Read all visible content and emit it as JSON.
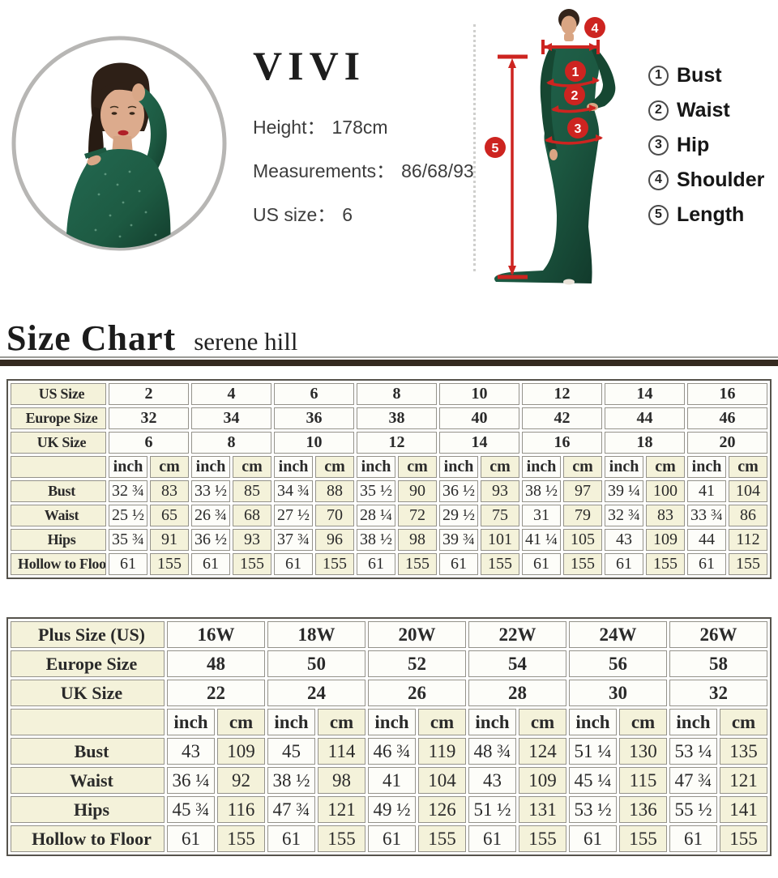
{
  "model_info": {
    "brand": "VIVI",
    "height_label": "Height：",
    "height_value": "178cm",
    "measurements_label": "Measurements：",
    "measurements_value": "86/68/93",
    "us_size_label": "US size：",
    "us_size_value": "6"
  },
  "diagram": {
    "markers": [
      "1",
      "2",
      "3",
      "4",
      "5"
    ],
    "legend": [
      {
        "num": "1",
        "label": "Bust"
      },
      {
        "num": "2",
        "label": "Waist"
      },
      {
        "num": "3",
        "label": "Hip"
      },
      {
        "num": "4",
        "label": "Shoulder"
      },
      {
        "num": "5",
        "label": "Length"
      }
    ]
  },
  "heading": {
    "title": "Size Chart",
    "subtitle": "serene hill"
  },
  "units": {
    "inch": "inch",
    "cm": "cm"
  },
  "size_chart": {
    "header_rows": [
      {
        "label": "US Size",
        "values": [
          "2",
          "4",
          "6",
          "8",
          "10",
          "12",
          "14",
          "16"
        ]
      },
      {
        "label": "Europe Size",
        "values": [
          "32",
          "34",
          "36",
          "38",
          "40",
          "42",
          "44",
          "46"
        ]
      },
      {
        "label": "UK Size",
        "values": [
          "6",
          "8",
          "10",
          "12",
          "14",
          "16",
          "18",
          "20"
        ]
      }
    ],
    "data_rows": [
      {
        "label": "Bust",
        "values": [
          [
            "32 ¾",
            "83"
          ],
          [
            "33 ½",
            "85"
          ],
          [
            "34 ¾",
            "88"
          ],
          [
            "35 ½",
            "90"
          ],
          [
            "36 ½",
            "93"
          ],
          [
            "38 ½",
            "97"
          ],
          [
            "39 ¼",
            "100"
          ],
          [
            "41",
            "104"
          ]
        ]
      },
      {
        "label": "Waist",
        "values": [
          [
            "25 ½",
            "65"
          ],
          [
            "26 ¾",
            "68"
          ],
          [
            "27 ½",
            "70"
          ],
          [
            "28 ¼",
            "72"
          ],
          [
            "29 ½",
            "75"
          ],
          [
            "31",
            "79"
          ],
          [
            "32 ¾",
            "83"
          ],
          [
            "33 ¾",
            "86"
          ]
        ]
      },
      {
        "label": "Hips",
        "values": [
          [
            "35 ¾",
            "91"
          ],
          [
            "36 ½",
            "93"
          ],
          [
            "37 ¾",
            "96"
          ],
          [
            "38 ½",
            "98"
          ],
          [
            "39 ¾",
            "101"
          ],
          [
            "41 ¼",
            "105"
          ],
          [
            "43",
            "109"
          ],
          [
            "44",
            "112"
          ]
        ]
      },
      {
        "label": "Hollow to Floor",
        "values": [
          [
            "61",
            "155"
          ],
          [
            "61",
            "155"
          ],
          [
            "61",
            "155"
          ],
          [
            "61",
            "155"
          ],
          [
            "61",
            "155"
          ],
          [
            "61",
            "155"
          ],
          [
            "61",
            "155"
          ],
          [
            "61",
            "155"
          ]
        ]
      }
    ]
  },
  "plus_size_chart": {
    "header_rows": [
      {
        "label": "Plus Size (US)",
        "values": [
          "16W",
          "18W",
          "20W",
          "22W",
          "24W",
          "26W"
        ]
      },
      {
        "label": "Europe Size",
        "values": [
          "48",
          "50",
          "52",
          "54",
          "56",
          "58"
        ]
      },
      {
        "label": "UK Size",
        "values": [
          "22",
          "24",
          "26",
          "28",
          "30",
          "32"
        ]
      }
    ],
    "data_rows": [
      {
        "label": "Bust",
        "values": [
          [
            "43",
            "109"
          ],
          [
            "45",
            "114"
          ],
          [
            "46 ¾",
            "119"
          ],
          [
            "48 ¾",
            "124"
          ],
          [
            "51 ¼",
            "130"
          ],
          [
            "53 ¼",
            "135"
          ]
        ]
      },
      {
        "label": "Waist",
        "values": [
          [
            "36 ¼",
            "92"
          ],
          [
            "38 ½",
            "98"
          ],
          [
            "41",
            "104"
          ],
          [
            "43",
            "109"
          ],
          [
            "45 ¼",
            "115"
          ],
          [
            "47 ¾",
            "121"
          ]
        ]
      },
      {
        "label": "Hips",
        "values": [
          [
            "45 ¾",
            "116"
          ],
          [
            "47 ¾",
            "121"
          ],
          [
            "49 ½",
            "126"
          ],
          [
            "51 ½",
            "131"
          ],
          [
            "53 ½",
            "136"
          ],
          [
            "55 ½",
            "141"
          ]
        ]
      },
      {
        "label": "Hollow to Floor",
        "values": [
          [
            "61",
            "155"
          ],
          [
            "61",
            "155"
          ],
          [
            "61",
            "155"
          ],
          [
            "61",
            "155"
          ],
          [
            "61",
            "155"
          ],
          [
            "61",
            "155"
          ]
        ]
      }
    ]
  },
  "colors": {
    "accent_red": "#cd2420",
    "dress_green": "#1d5a42",
    "dress_green_dark": "#143e2d",
    "cream_cell": "#f4f2da",
    "white_cell": "#fdfdf9",
    "heading_bar": "#352a20"
  }
}
